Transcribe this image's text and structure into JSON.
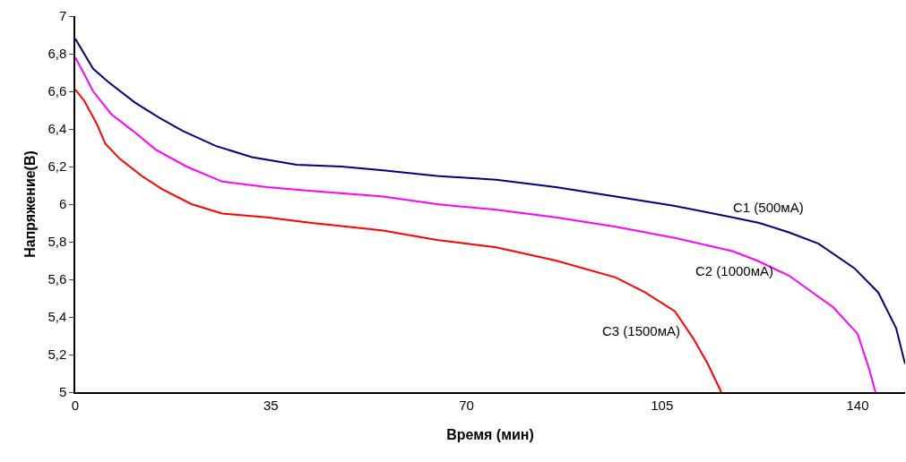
{
  "chart_data": {
    "type": "line",
    "xlabel": "Время (мин)",
    "ylabel": "Напряжение(В)",
    "xlim": [
      0,
      148.5
    ],
    "xticks": [
      0,
      35,
      70,
      105,
      140
    ],
    "ylim": [
      5,
      7
    ],
    "yticks": [
      5,
      {
        "value": 5.2,
        "label": "5,2"
      },
      {
        "value": 5.4,
        "label": "5,4"
      },
      {
        "value": 5.6,
        "label": "5,6"
      },
      {
        "value": 5.8,
        "label": "5,8"
      },
      6,
      {
        "value": 6.2,
        "label": "6,2"
      },
      {
        "value": 6.4,
        "label": "6,4"
      },
      {
        "value": 6.6,
        "label": "6,6"
      },
      {
        "value": 6.8,
        "label": "6,8"
      },
      7
    ],
    "grid": false,
    "legend": false,
    "marker": "none",
    "line_style": "solid",
    "series": [
      {
        "name": "C1 (500мА)",
        "color": "#000080",
        "x": [
          0,
          3.2,
          5.9,
          10.7,
          15,
          19.2,
          25.1,
          31.6,
          39.6,
          47.6,
          55.1,
          64.7,
          75.3,
          86,
          96.7,
          107.3,
          117.6,
          122.4,
          127.7,
          133,
          139.4,
          143.7,
          146.9,
          148.5
        ],
        "values": [
          6.88,
          6.72,
          6.65,
          6.54,
          6.46,
          6.39,
          6.31,
          6.25,
          6.21,
          6.2,
          6.18,
          6.15,
          6.13,
          6.09,
          6.04,
          5.99,
          5.93,
          5.9,
          5.85,
          5.79,
          5.66,
          5.53,
          5.34,
          5.15
        ]
      },
      {
        "name": "C2 (1000мА)",
        "color": "#ff00ff",
        "x": [
          0,
          1.1,
          3.2,
          6.4,
          10.3,
          14.4,
          19.9,
          26.3,
          34.3,
          42.3,
          55.1,
          64.7,
          75.3,
          86,
          96.7,
          107.3,
          117.6,
          122,
          127.7,
          135.7,
          140,
          142.1,
          143.2
        ],
        "values": [
          6.78,
          6.72,
          6.6,
          6.48,
          6.39,
          6.29,
          6.2,
          6.12,
          6.09,
          6.07,
          6.04,
          6.0,
          5.97,
          5.93,
          5.88,
          5.82,
          5.75,
          5.7,
          5.62,
          5.45,
          5.31,
          5.12,
          5.0
        ]
      },
      {
        "name": "C3 (1500мА)",
        "color": "#ff0000",
        "x": [
          0,
          1.6,
          3.8,
          5.4,
          8,
          11.9,
          15.5,
          20.8,
          26.3,
          34.3,
          42.3,
          55.1,
          64.7,
          75.3,
          86,
          96.7,
          102,
          107.3,
          110.5,
          113.2,
          115.6
        ],
        "values": [
          6.61,
          6.55,
          6.43,
          6.32,
          6.24,
          6.15,
          6.08,
          6.0,
          5.95,
          5.93,
          5.9,
          5.86,
          5.81,
          5.77,
          5.7,
          5.61,
          5.53,
          5.43,
          5.29,
          5.15,
          5.0
        ]
      }
    ]
  }
}
